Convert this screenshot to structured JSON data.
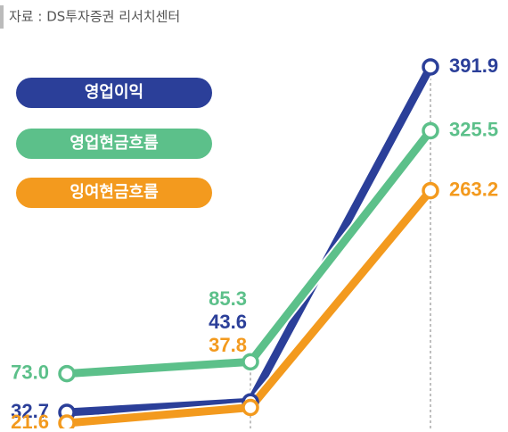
{
  "source": "자료 : DS투자증권 리서치센터",
  "chart_data": {
    "type": "line",
    "categories": [
      null,
      null,
      null
    ],
    "ylim": [
      20,
      460
    ],
    "series": [
      {
        "name": "영업이익",
        "color": "#2b3f99",
        "values": [
          32.7,
          43.6,
          391.9
        ],
        "value_labels": [
          "32.7",
          "43.6",
          "391.9"
        ]
      },
      {
        "name": "영업현금흐름",
        "color": "#5cc08a",
        "values": [
          73.0,
          85.3,
          325.5
        ],
        "value_labels": [
          "73.0",
          "85.3",
          "325.5"
        ]
      },
      {
        "name": "잉여현금흐름",
        "color": "#f39a1e",
        "values": [
          21.6,
          37.8,
          263.2
        ],
        "value_labels": [
          "21.6",
          "37.8",
          "263.2"
        ]
      }
    ]
  }
}
